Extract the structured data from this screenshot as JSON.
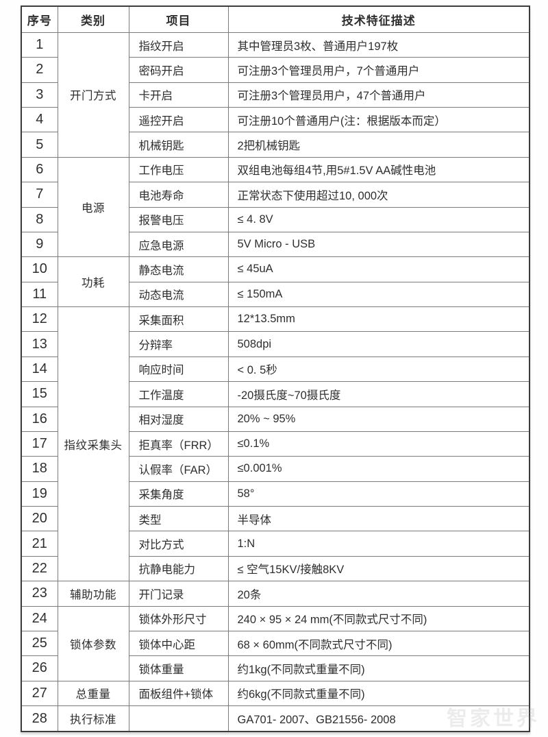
{
  "header": {
    "col_no": "序号",
    "col_category": "类别",
    "col_item": "项目",
    "col_desc": "技术特征描述"
  },
  "categories": [
    {
      "label": "开门方式",
      "rowspan": 5
    },
    {
      "label": "电源",
      "rowspan": 4
    },
    {
      "label": "功耗",
      "rowspan": 2
    },
    {
      "label": "指纹采集头",
      "rowspan": 11
    },
    {
      "label": "辅助功能",
      "rowspan": 1
    },
    {
      "label": "锁体参数",
      "rowspan": 3
    },
    {
      "label": "总重量",
      "rowspan": 1
    },
    {
      "label": "执行标准",
      "rowspan": 1
    }
  ],
  "rows": [
    {
      "no": "1",
      "item": "指纹开启",
      "desc": "其中管理员3枚、普通用户197枚"
    },
    {
      "no": "2",
      "item": "密码开启",
      "desc": "可注册3个管理员用户，7个普通用户"
    },
    {
      "no": "3",
      "item": "卡开启",
      "desc": "可注册3个管理员用户，47个普通用户"
    },
    {
      "no": "4",
      "item": "遥控开启",
      "desc": "可注册10个普通用户(注：根据版本而定）"
    },
    {
      "no": "5",
      "item": "机械钥匙",
      "desc": "2把机械钥匙"
    },
    {
      "no": "6",
      "item": "工作电压",
      "desc": "双组电池每组4节,用5#1.5V AA碱性电池"
    },
    {
      "no": "7",
      "item": "电池寿命",
      "desc": "正常状态下使用超过10, 000次"
    },
    {
      "no": "8",
      "item": "报警电压",
      "desc": "≤ 4. 8V"
    },
    {
      "no": "9",
      "item": "应急电源",
      "desc": "5V Micro - USB"
    },
    {
      "no": "10",
      "item": "静态电流",
      "desc": "≤ 45uA"
    },
    {
      "no": "11",
      "item": "动态电流",
      "desc": "≤ 150mA"
    },
    {
      "no": "12",
      "item": "采集面积",
      "desc": "12*13.5mm"
    },
    {
      "no": "13",
      "item": "分辩率",
      "desc": "508dpi"
    },
    {
      "no": "14",
      "item": "响应时间",
      "desc": "< 0. 5秒"
    },
    {
      "no": "15",
      "item": "工作温度",
      "desc": "-20摄氏度~70摄氏度"
    },
    {
      "no": "16",
      "item": "相对湿度",
      "desc": "20% ~ 95%"
    },
    {
      "no": "17",
      "item": "拒真率（FRR）",
      "desc": "≤0.1%"
    },
    {
      "no": "18",
      "item": "认假率（FAR）",
      "desc": "≤0.001%"
    },
    {
      "no": "19",
      "item": "采集角度",
      "desc": "58°"
    },
    {
      "no": "20",
      "item": "类型",
      "desc": "半导体"
    },
    {
      "no": "21",
      "item": "对比方式",
      "desc": "1:N"
    },
    {
      "no": "22",
      "item": "抗静电能力",
      "desc": "≤ 空气15KV/接触8KV"
    },
    {
      "no": "23",
      "item": "开门记录",
      "desc": "20条"
    },
    {
      "no": "24",
      "item": "锁体外形尺寸",
      "desc": "240 × 95 × 24 mm(不同款式尺寸不同)"
    },
    {
      "no": "25",
      "item": "锁体中心距",
      "desc": "68 × 60mm(不同款式尺寸不同)"
    },
    {
      "no": "26",
      "item": "锁体重量",
      "desc": "约1kg(不同款式重量不同)"
    },
    {
      "no": "27",
      "item": "面板组件+锁体",
      "desc": "约6kg(不同款式重量不同)"
    },
    {
      "no": "28",
      "item": "",
      "desc": "GA701- 2007、GB21556- 2008"
    }
  ],
  "watermark": "智家世界"
}
